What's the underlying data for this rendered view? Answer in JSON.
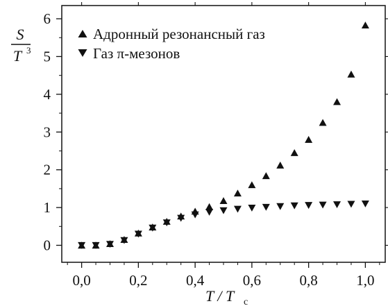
{
  "chart_data": {
    "type": "scatter",
    "xlim": [
      -0.07,
      1.07
    ],
    "ylim": [
      -0.45,
      6.35
    ],
    "xticks": [
      0.0,
      0.2,
      0.4,
      0.6,
      0.8,
      1.0
    ],
    "xtick_labels": [
      "0,0",
      "0,2",
      "0,4",
      "0,6",
      "0,8",
      "1,0"
    ],
    "yticks": [
      0,
      1,
      2,
      3,
      4,
      5,
      6
    ],
    "ytick_labels": [
      "0",
      "1",
      "2",
      "3",
      "4",
      "5",
      "6"
    ],
    "xlabel": {
      "main": "T / T",
      "sub": "c"
    },
    "ylabel": {
      "numerator": "S",
      "denominator": "T",
      "exponent": "3"
    },
    "grid": false,
    "legend_position": "top-left",
    "x": [
      0.0,
      0.05,
      0.1,
      0.15,
      0.2,
      0.25,
      0.3,
      0.35,
      0.4,
      0.45,
      0.5,
      0.55,
      0.6,
      0.65,
      0.7,
      0.75,
      0.8,
      0.85,
      0.9,
      0.95,
      1.0
    ],
    "series": [
      {
        "name": "Адронный резонансный газ",
        "marker": "triangle-up",
        "values": [
          0.0,
          0.0,
          0.04,
          0.15,
          0.32,
          0.48,
          0.63,
          0.77,
          0.9,
          1.02,
          1.18,
          1.38,
          1.6,
          1.84,
          2.12,
          2.45,
          2.8,
          3.25,
          3.8,
          4.53,
          5.83
        ]
      },
      {
        "name": "Газ π-мезонов",
        "marker": "triangle-down",
        "values": [
          0.0,
          0.0,
          0.03,
          0.13,
          0.3,
          0.46,
          0.6,
          0.72,
          0.81,
          0.88,
          0.92,
          0.96,
          0.99,
          1.01,
          1.03,
          1.05,
          1.06,
          1.07,
          1.08,
          1.09,
          1.1
        ]
      }
    ],
    "colors": {
      "marker": "#111111",
      "axis": "#111111",
      "background": "#ffffff"
    }
  }
}
